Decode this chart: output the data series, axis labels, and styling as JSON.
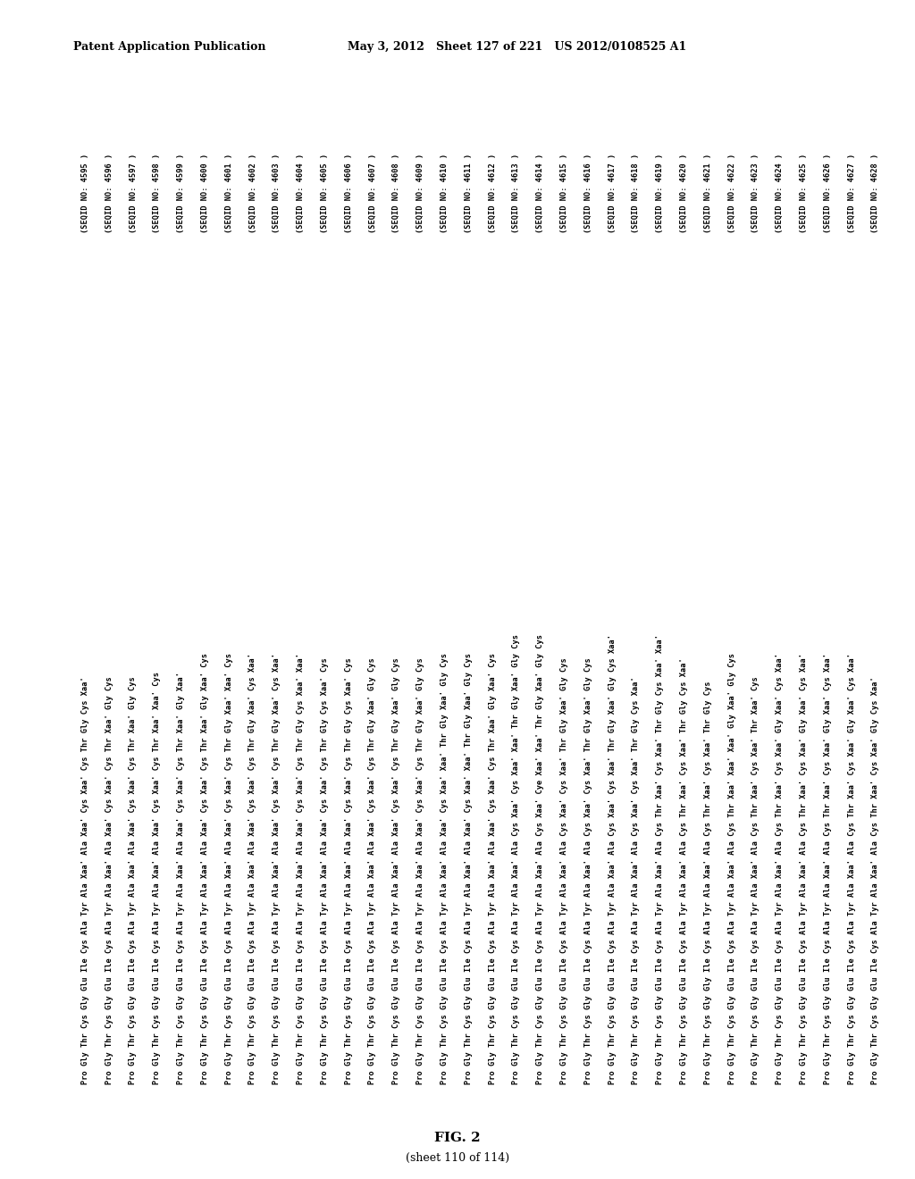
{
  "header_left": "Patent Application Publication",
  "header_middle": "May 3, 2012   Sheet 127 of 221   US 2012/0108525 A1",
  "fig_label": "FIG. 2",
  "fig_sublabel": "(sheet 110 of 114)",
  "background_color": "#ffffff",
  "text_color": "#000000",
  "sequences": [
    "Pro Gly Thr Cys Gly Glu Ile Cys Ala Tyr Ala Xaa' Ala Xaa' Cys Xaa' Cys Thr Gly Cys Xaa'  (SEQID NO: 4595 )",
    "Pro Gly Thr Cys Gly Glu Ile Cys Ala Tyr Ala Xaa' Ala Xaa' Cys Xaa' Cys Thr Xaa' Gly Cys  (SEQID NO: 4596 )",
    "Pro Gly Thr Cys Gly Glu Ile Cys Ala Tyr Ala Xaa' Ala Xaa' Cys Xaa' Cys Thr Xaa' Gly Cys  (SEQID NO: 4597 )",
    "Pro Gly Thr Cys Gly Glu Ile Cys Ala Tyr Ala Xaa' Ala Xaa' Cys Xaa' Cys Thr Xaa' Xaa' Cys  (SEQID NO: 4598 )",
    "Pro Gly Thr Cys Gly Glu Ile Cys Ala Tyr Ala Xaa' Ala Xaa' Cys Xaa' Cys Thr Xaa' Gly Xaa'  (SEQID NO: 4599 )",
    "Pro Gly Thr Cys Gly Glu Ile Cys Ala Tyr Ala Xaa' Ala Xaa' Cys Xaa' Cys Thr Xaa' Gly Xaa' Cys  (SEQID NO: 4600 )",
    "Pro Gly Thr Cys Gly Glu Ile Cys Ala Tyr Ala Xaa' Ala Xaa' Cys Xaa' Cys Thr Gly Xaa' Xaa' Cys  (SEQID NO: 4601 )",
    "Pro Gly Thr Cys Gly Glu Ile Cys Ala Tyr Ala Xaa' Ala Xaa' Cys Xaa' Cys Thr Gly Xaa' Cys Xaa'  (SEQID NO: 4602 )",
    "Pro Gly Thr Cys Gly Glu Ile Cys Ala Tyr Ala Xaa' Ala Xaa' Cys Xaa' Cys Thr Gly Xaa' Cys Xaa'  (SEQID NO: 4603 )",
    "Pro Gly Thr Cys Gly Glu Ile Cys Ala Tyr Ala Xaa' Ala Xaa' Cys Xaa' Cys Thr Gly Cys Xaa' Xaa'  (SEQID NO: 4604 )",
    "Pro Gly Thr Cys Gly Glu Ile Cys Ala Tyr Ala Xaa' Ala Xaa' Cys Xaa' Cys Thr Gly Cys Xaa' Cys  (SEQID NO: 4605 )",
    "Pro Gly Thr Cys Gly Glu Ile Cys Ala Tyr Ala Xaa' Ala Xaa' Cys Xaa' Cys Thr Gly Cys Xaa' Cys  (SEQID NO: 4606 )",
    "Pro Gly Thr Cys Gly Glu Ile Cys Ala Tyr Ala Xaa' Ala Xaa' Cys Xaa' Cys Thr Gly Xaa' Gly Cys  (SEQID NO: 4607 )",
    "Pro Gly Thr Cys Gly Glu Ile Cys Ala Tyr Ala Xaa' Ala Xaa' Cys Xaa' Cys Thr Gly Xaa' Gly Cys  (SEQID NO: 4608 )",
    "Pro Gly Thr Cys Gly Glu Ile Cys Ala Tyr Ala Xaa' Ala Xaa' Cys Xaa' Cys Thr Gly Xaa' Gly Cys  (SEQID NO: 4609 )",
    "Pro Gly Thr Cys Gly Glu Ile Cys Ala Tyr Ala Xaa' Ala Xaa' Cys Xaa' Xaa' Thr Gly Xaa' Gly Cys  (SEQID NO: 4610 )",
    "Pro Gly Thr Cys Gly Glu Ile Cys Ala Tyr Ala Xaa' Ala Xaa' Cys Xaa' Xaa' Thr Gly Xaa' Gly Cys  (SEQID NO: 4611 )",
    "Pro Gly Thr Cys Gly Glu Ile Cys Ala Tyr Ala Xaa' Ala Xaa' Cys Xaa' Cys Thr Xaa' Gly Xaa' Cys  (SEQID NO: 4612 )",
    "Pro Gly Thr Cys Gly Glu Ile Cys Ala Tyr Ala Xaa' Ala Cys Xaa' Cys Xaa' Xaa' Thr Gly Xaa' Gly Cys  (SEQID NO: 4613 )",
    "Pro Gly Thr Cys Gly Glu Ile Cys Ala Tyr Ala Xaa' Ala Cys Xaa' Cye Xaa' Xaa' Thr Gly Xaa' Gly Cys  (SEQID NO: 4614 )",
    "Pro Gly Thr Cys Gly Glu Ile Cys Ala Tyr Ala Xaa' Ala Cys Xaa' Cys Xaa' Thr Gly Xaa' Gly Cys  (SEQID NO: 4615 )",
    "Pro Gly Thr Cys Gly Glu Ile Cys Ala Tyr Ala Xaa' Ala Cys Xaa' Cys Xaa' Thr Gly Xaa' Gly Cys  (SEQID NO: 4616 )",
    "Pro Gly Thr Cys Gly Glu Ile Cys Ala Tyr Ala Xaa' Ala Cys Xaa' Cys Xaa' Thr Gly Xaa' Gly Cys Xaa'  (SEQID NO: 4617 )",
    "Pro Gly Thr Cys Gly Glu Ile Cys Ala Tyr Ala Xaa' Ala Cys Xaa' Cys Xaa' Thr Gly Cys Xaa'  (SEQID NO: 4618 )",
    "Pro Gly Thr Cys Gly Glu Ile Cys Ala Tyr Ala Xaa' Ala Cys Thr Xaa' Cys Xaa' Thr Gly Cys Xaa' Xaa'  (SEQID NO: 4619 )",
    "Pro Gly Thr Cys Gly Glu Ile Cys Ala Tyr Ala Xaa' Ala Cys Thr Xaa' Cys Xaa' Thr Gly Cys Xaa'  (SEQID NO: 4620 )",
    "Pro Gly Thr Cys Gly Gly Ile Cys Ala Tyr Ala Xaa' Ala Cys Thr Xaa' Cys Xaa' Thr Gly Cys  (SEQID NO: 4621 )",
    "Pro Gly Thr Cys Gly Glu Ile Cys Ala Tyr Ala Xaa' Ala Cys Thr Xaa' Xaa' Xaa' Gly Xaa' Gly Cys  (SEQID NO: 4622 )",
    "Pro Gly Thr Cys Gly Glu Ile Cys Ala Tyr Ala Xaa' Ala Cys Thr Xaa' Cys Xaa' Thr Xaa' Cys  (SEQID NO: 4623 )",
    "Pro Gly Thr Cys Gly Glu Ile Cys Ala Tyr Ala Xaa' Ala Cys Thr Xaa' Cys Xaa' Gly Xaa' Cys Xaa'  (SEQID NO: 4624 )",
    "Pro Gly Thr Cys Gly Glu Ile Cys Ala Tyr Ala Xaa' Ala Cys Thr Xaa' Cys Xaa' Gly Xaa' Cys Xaa'  (SEQID NO: 4625 )",
    "Pro Gly Thr Cys Gly Glu Ile Cys Ala Tyr Ala Xaa' Ala Cys Thr Xaa' Cys Xaa' Gly Xaa' Cys Xaa'  (SEQID NO: 4626 )",
    "Pro Gly Thr Cys Gly Glu Ile Cys Ala Tyr Ala Xaa' Ala Cys Thr Xaa' Cys Xaa' Gly Xaa' Cys Xaa'  (SEQID NO: 4627 )",
    "Pro Gly Thr Cys Gly Glu Ile Cys Ala Tyr Ala Xaa' Ala Cys Thr Xaa' Cys Xaa' Gly Cys Xaa'  (SEQID NO: 4628 )"
  ],
  "raw_lines": [
    [
      "Pro",
      "Gly",
      "Thr",
      "Cys",
      "Gly",
      "Glu",
      "Ile",
      "Cys",
      "Ala",
      "Tyr",
      "Ala",
      "Xaa'",
      "Ala",
      "Xaa'",
      "Cys",
      "Xaa'",
      "Cys",
      "Thr",
      "Gly",
      "Cys",
      "Xaa'",
      "(SEQID NO: 4595 )"
    ],
    [
      "Pro",
      "Gly",
      "Thr",
      "Cys",
      "Gly",
      "Glu",
      "Ile",
      "Cys",
      "Ala",
      "Tyr",
      "Ala",
      "Xaa'",
      "Ala",
      "Xaa'",
      "Cys",
      "Xaa'",
      "Cys",
      "Thr",
      "Xaa'",
      "Gly",
      "Cys",
      "(SEQID NO: 4596 )"
    ],
    [
      "Pro",
      "Gly",
      "Thr",
      "Cys",
      "Gly",
      "Glu",
      "Ile",
      "Cys",
      "Ala",
      "Tyr",
      "Ala",
      "Xaa'",
      "Ala",
      "Xaa'",
      "Cys",
      "Xaa'",
      "Cys",
      "Thr",
      "Xaa'",
      "Gly",
      "Cys",
      "(SEQID NO: 4597 )"
    ],
    [
      "Pro",
      "Gly",
      "Thr",
      "Cys",
      "Gly",
      "Glu",
      "Ile",
      "Cys",
      "Ala",
      "Tyr",
      "Ala",
      "Xaa'",
      "Ala",
      "Xaa'",
      "Cys",
      "Xaa'",
      "Cys",
      "Thr",
      "Xaa'",
      "Xaa'",
      "Cys",
      "(SEQID NO: 4598 )"
    ],
    [
      "Pro",
      "Gly",
      "Thr",
      "Cys",
      "Gly",
      "Glu",
      "Ile",
      "Cys",
      "Ala",
      "Tyr",
      "Ala",
      "Xaa'",
      "Ala",
      "Xaa'",
      "Cys",
      "Xaa'",
      "Cys",
      "Thr",
      "Xaa'",
      "Gly",
      "Xaa'",
      "(SEQID NO: 4599 )"
    ],
    [
      "Pro",
      "Gly",
      "Thr",
      "Cys",
      "Gly",
      "Glu",
      "Ile",
      "Cys",
      "Ala",
      "Tyr",
      "Ala",
      "Xaa'",
      "Ala",
      "Xaa'",
      "Cys",
      "Xaa'",
      "Cys",
      "Thr",
      "Xaa'",
      "Gly",
      "Xaa'",
      "Cys",
      "(SEQID NO: 4600 )"
    ],
    [
      "Pro",
      "Gly",
      "Thr",
      "Cys",
      "Gly",
      "Glu",
      "Ile",
      "Cys",
      "Ala",
      "Tyr",
      "Ala",
      "Xaa'",
      "Ala",
      "Xaa'",
      "Cys",
      "Xaa'",
      "Cys",
      "Thr",
      "Gly",
      "Xaa'",
      "Xaa'",
      "Cys",
      "(SEQID NO: 4601 )"
    ],
    [
      "Pro",
      "Gly",
      "Thr",
      "Cys",
      "Gly",
      "Glu",
      "Ile",
      "Cys",
      "Ala",
      "Tyr",
      "Ala",
      "Xaa'",
      "Ala",
      "Xaa'",
      "Cys",
      "Xaa'",
      "Cys",
      "Thr",
      "Gly",
      "Xaa'",
      "Cys",
      "Xaa'",
      "(SEQID NO: 4602 )"
    ],
    [
      "Pro",
      "Gly",
      "Thr",
      "Cys",
      "Gly",
      "Glu",
      "Ile",
      "Cys",
      "Ala",
      "Tyr",
      "Ala",
      "Xaa'",
      "Ala",
      "Xaa'",
      "Cys",
      "Xaa'",
      "Cys",
      "Thr",
      "Gly",
      "Xaa'",
      "Cys",
      "Xaa'",
      "(SEQID NO: 4603 )"
    ],
    [
      "Pro",
      "Gly",
      "Thr",
      "Cys",
      "Gly",
      "Glu",
      "Ile",
      "Cys",
      "Ala",
      "Tyr",
      "Ala",
      "Xaa'",
      "Ala",
      "Xaa'",
      "Cys",
      "Xaa'",
      "Cys",
      "Thr",
      "Gly",
      "Cys",
      "Xaa'",
      "Xaa'",
      "(SEQID NO: 4604 )"
    ],
    [
      "Pro",
      "Gly",
      "Thr",
      "Cys",
      "Gly",
      "Glu",
      "Ile",
      "Cys",
      "Ala",
      "Tyr",
      "Ala",
      "Xaa'",
      "Ala",
      "Xaa'",
      "Cys",
      "Xaa'",
      "Cys",
      "Thr",
      "Gly",
      "Cys",
      "Xaa'",
      "Cys",
      "(SEQID NO: 4605 )"
    ],
    [
      "Pro",
      "Gly",
      "Thr",
      "Cys",
      "Gly",
      "Glu",
      "Ile",
      "Cys",
      "Ala",
      "Tyr",
      "Ala",
      "Xaa'",
      "Ala",
      "Xaa'",
      "Cys",
      "Xaa'",
      "Cys",
      "Thr",
      "Gly",
      "Cys",
      "Xaa'",
      "Cys",
      "(SEQID NO: 4606 )"
    ],
    [
      "Pro",
      "Gly",
      "Thr",
      "Cys",
      "Gly",
      "Glu",
      "Ile",
      "Cys",
      "Ala",
      "Tyr",
      "Ala",
      "Xaa'",
      "Ala",
      "Xaa'",
      "Cys",
      "Xaa'",
      "Cys",
      "Thr",
      "Gly",
      "Xaa'",
      "Gly",
      "Cys",
      "(SEQID NO: 4607 )"
    ],
    [
      "Pro",
      "Gly",
      "Thr",
      "Cys",
      "Gly",
      "Glu",
      "Ile",
      "Cys",
      "Ala",
      "Tyr",
      "Ala",
      "Xaa'",
      "Ala",
      "Xaa'",
      "Cys",
      "Xaa'",
      "Cys",
      "Thr",
      "Gly",
      "Xaa'",
      "Gly",
      "Cys",
      "(SEQID NO: 4608 )"
    ],
    [
      "Pro",
      "Gly",
      "Thr",
      "Cys",
      "Gly",
      "Glu",
      "Ile",
      "Cys",
      "Ala",
      "Tyr",
      "Ala",
      "Xaa'",
      "Ala",
      "Xaa'",
      "Cys",
      "Xaa'",
      "Cys",
      "Thr",
      "Gly",
      "Xaa'",
      "Gly",
      "Cys",
      "(SEQID NO: 4609 )"
    ],
    [
      "Pro",
      "Gly",
      "Thr",
      "Cys",
      "Gly",
      "Glu",
      "Ile",
      "Cys",
      "Ala",
      "Tyr",
      "Ala",
      "Xaa'",
      "Ala",
      "Xaa'",
      "Cys",
      "Xaa'",
      "Xaa'",
      "Thr",
      "Gly",
      "Xaa'",
      "Gly",
      "Cys",
      "(SEQID NO: 4610 )"
    ],
    [
      "Pro",
      "Gly",
      "Thr",
      "Cys",
      "Gly",
      "Glu",
      "Ile",
      "Cys",
      "Ala",
      "Tyr",
      "Ala",
      "Xaa'",
      "Ala",
      "Xaa'",
      "Cys",
      "Xaa'",
      "Xaa'",
      "Thr",
      "Gly",
      "Xaa'",
      "Gly",
      "Cys",
      "(SEQID NO: 4611 )"
    ],
    [
      "Pro",
      "Gly",
      "Thr",
      "Cys",
      "Gly",
      "Glu",
      "Ile",
      "Cys",
      "Ala",
      "Tyr",
      "Ala",
      "Xaa'",
      "Ala",
      "Xaa'",
      "Cys",
      "Xaa'",
      "Cys",
      "Thr",
      "Xaa'",
      "Gly",
      "Xaa'",
      "Cys",
      "(SEQID NO: 4612 )"
    ],
    [
      "Pro",
      "Gly",
      "Thr",
      "Cys",
      "Gly",
      "Glu",
      "Ile",
      "Cys",
      "Ala",
      "Tyr",
      "Ala",
      "Xaa'",
      "Ala",
      "Cys",
      "Xaa'",
      "Cys",
      "Xaa'",
      "Xaa'",
      "Thr",
      "Gly",
      "Xaa'",
      "Gly",
      "Cys",
      "(SEQID NO: 4613 )"
    ],
    [
      "Pro",
      "Gly",
      "Thr",
      "Cys",
      "Gly",
      "Glu",
      "Ile",
      "Cys",
      "Ala",
      "Tyr",
      "Ala",
      "Xaa'",
      "Ala",
      "Cys",
      "Xaa'",
      "Cye",
      "Xaa'",
      "Xaa'",
      "Thr",
      "Gly",
      "Xaa'",
      "Gly",
      "Cys",
      "(SEQID NO: 4614 )"
    ],
    [
      "Pro",
      "Gly",
      "Thr",
      "Cys",
      "Gly",
      "Glu",
      "Ile",
      "Cys",
      "Ala",
      "Tyr",
      "Ala",
      "Xaa'",
      "Ala",
      "Cys",
      "Xaa'",
      "Cys",
      "Xaa'",
      "Thr",
      "Gly",
      "Xaa'",
      "Gly",
      "Cys",
      "(SEQID NO: 4615 )"
    ],
    [
      "Pro",
      "Gly",
      "Thr",
      "Cys",
      "Gly",
      "Glu",
      "Ile",
      "Cys",
      "Ala",
      "Tyr",
      "Ala",
      "Xaa'",
      "Ala",
      "Cys",
      "Xaa'",
      "Cys",
      "Xaa'",
      "Thr",
      "Gly",
      "Xaa'",
      "Gly",
      "Cys",
      "(SEQID NO: 4616 )"
    ],
    [
      "Pro",
      "Gly",
      "Thr",
      "Cys",
      "Gly",
      "Glu",
      "Ile",
      "Cys",
      "Ala",
      "Tyr",
      "Ala",
      "Xaa'",
      "Ala",
      "Cys",
      "Xaa'",
      "Cys",
      "Xaa'",
      "Thr",
      "Gly",
      "Xaa'",
      "Gly",
      "Cys",
      "Xaa'",
      "(SEQID NO: 4617 )"
    ],
    [
      "Pro",
      "Gly",
      "Thr",
      "Cys",
      "Gly",
      "Glu",
      "Ile",
      "Cys",
      "Ala",
      "Tyr",
      "Ala",
      "Xaa'",
      "Ala",
      "Cys",
      "Xaa'",
      "Cys",
      "Xaa'",
      "Thr",
      "Gly",
      "Cys",
      "Xaa'",
      "(SEQID NO: 4618 )"
    ],
    [
      "Pro",
      "Gly",
      "Thr",
      "Cys",
      "Gly",
      "Glu",
      "Ile",
      "Cys",
      "Ala",
      "Tyr",
      "Ala",
      "Xaa'",
      "Ala",
      "Cys",
      "Thr",
      "Xaa'",
      "Cys",
      "Xaa'",
      "Thr",
      "Gly",
      "Cys",
      "Xaa'",
      "Xaa'",
      "(SEQID NO: 4619 )"
    ],
    [
      "Pro",
      "Gly",
      "Thr",
      "Cys",
      "Gly",
      "Glu",
      "Ile",
      "Cys",
      "Ala",
      "Tyr",
      "Ala",
      "Xaa'",
      "Ala",
      "Cys",
      "Thr",
      "Xaa'",
      "Cys",
      "Xaa'",
      "Thr",
      "Gly",
      "Cys",
      "Xaa'",
      "(SEQID NO: 4620 )"
    ],
    [
      "Pro",
      "Gly",
      "Thr",
      "Cys",
      "Gly",
      "Gly",
      "Ile",
      "Cys",
      "Ala",
      "Tyr",
      "Ala",
      "Xaa'",
      "Ala",
      "Cys",
      "Thr",
      "Xaa'",
      "Cys",
      "Xaa'",
      "Thr",
      "Gly",
      "Cys",
      "(SEQID NO: 4621 )"
    ],
    [
      "Pro",
      "Gly",
      "Thr",
      "Cys",
      "Gly",
      "Glu",
      "Ile",
      "Cys",
      "Ala",
      "Tyr",
      "Ala",
      "Xaa'",
      "Ala",
      "Cys",
      "Thr",
      "Xaa'",
      "Xaa'",
      "Xaa'",
      "Gly",
      "Xaa'",
      "Gly",
      "Cys",
      "(SEQID NO: 4622 )"
    ],
    [
      "Pro",
      "Gly",
      "Thr",
      "Cys",
      "Gly",
      "Glu",
      "Ile",
      "Cys",
      "Ala",
      "Tyr",
      "Ala",
      "Xaa'",
      "Ala",
      "Cys",
      "Thr",
      "Xaa'",
      "Cys",
      "Xaa'",
      "Thr",
      "Xaa'",
      "Cys",
      "(SEQID NO: 4623 )"
    ],
    [
      "Pro",
      "Gly",
      "Thr",
      "Cys",
      "Gly",
      "Glu",
      "Ile",
      "Cys",
      "Ala",
      "Tyr",
      "Ala",
      "Xaa'",
      "Ala",
      "Cys",
      "Thr",
      "Xaa'",
      "Cys",
      "Xaa'",
      "Gly",
      "Xaa'",
      "Cys",
      "Xaa'",
      "(SEQID NO: 4624 )"
    ],
    [
      "Pro",
      "Gly",
      "Thr",
      "Cys",
      "Gly",
      "Glu",
      "Ile",
      "Cys",
      "Ala",
      "Tyr",
      "Ala",
      "Xaa'",
      "Ala",
      "Cys",
      "Thr",
      "Xaa'",
      "Cys",
      "Xaa'",
      "Gly",
      "Xaa'",
      "Cys",
      "Xaa'",
      "(SEQID NO: 4625 )"
    ],
    [
      "Pro",
      "Gly",
      "Thr",
      "Cys",
      "Gly",
      "Glu",
      "Ile",
      "Cys",
      "Ala",
      "Tyr",
      "Ala",
      "Xaa'",
      "Ala",
      "Cys",
      "Thr",
      "Xaa'",
      "Cys",
      "Xaa'",
      "Gly",
      "Xaa'",
      "Cys",
      "Xaa'",
      "(SEQID NO: 4626 )"
    ],
    [
      "Pro",
      "Gly",
      "Thr",
      "Cys",
      "Gly",
      "Glu",
      "Ile",
      "Cys",
      "Ala",
      "Tyr",
      "Ala",
      "Xaa'",
      "Ala",
      "Cys",
      "Thr",
      "Xaa'",
      "Cys",
      "Xaa'",
      "Gly",
      "Xaa'",
      "Cys",
      "Xaa'",
      "(SEQID NO: 4627 )"
    ],
    [
      "Pro",
      "Gly",
      "Thr",
      "Cys",
      "Gly",
      "Glu",
      "Ile",
      "Cys",
      "Ala",
      "Tyr",
      "Ala",
      "Xaa'",
      "Ala",
      "Cys",
      "Thr",
      "Xaa'",
      "Cys",
      "Xaa'",
      "Gly",
      "Cys",
      "Xaa'",
      "(SEQID NO: 4628 )"
    ]
  ]
}
